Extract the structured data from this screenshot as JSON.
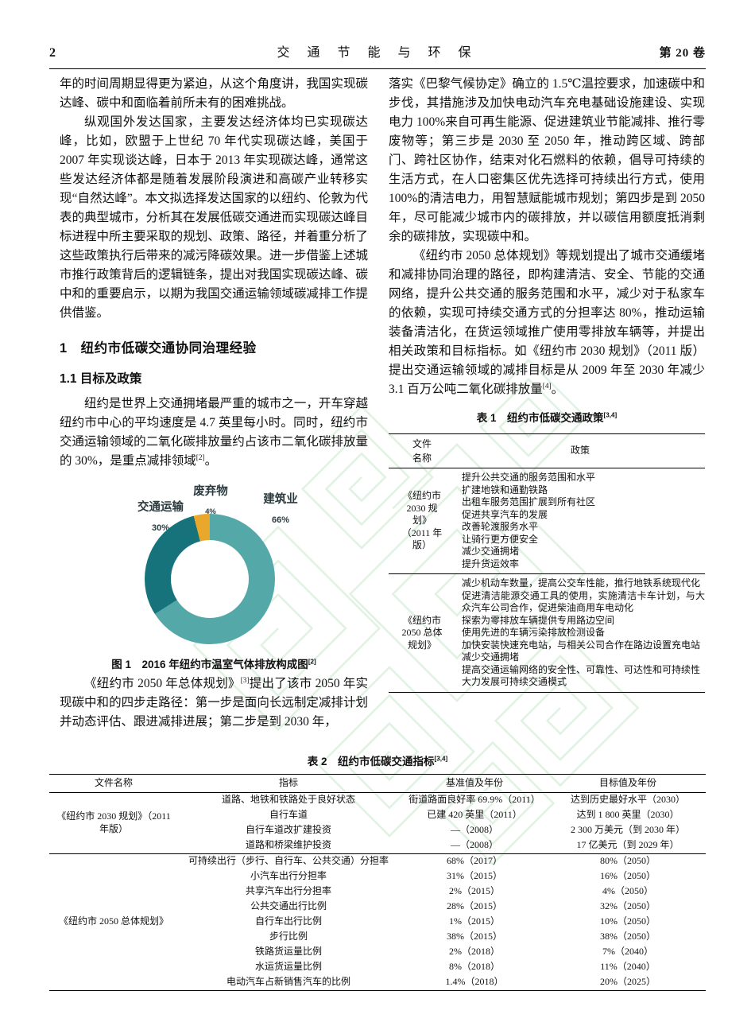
{
  "page": {
    "number": "2",
    "journal": "交 通 节 能 与 环 保",
    "volume": "第 20 卷"
  },
  "left_column": {
    "para_continuation": "年的时间周期显得更为紧迫，从这个角度讲，我国实现碳达峰、碳中和面临着前所未有的困难挑战。",
    "para_overview": "纵观国外发达国家，主要发达经济体均已实现碳达峰，比如，欧盟于上世纪 70 年代实现碳达峰，美国于 2007 年实现谈达峰，日本于 2013 年实现碳达峰，通常这些发达经济体都是随着发展阶段演进和高碳产业转移实现“自然达峰”。本文拟选择发达国家的以纽约、伦敦为代表的典型城市，分析其在发展低碳交通进而实现碳达峰目标进程中所主要采取的规划、政策、路径，并着重分析了这些政策执行后带来的减污降碳效果。进一步借鉴上述城市推行政策背后的逻辑链条，提出对我国实现碳达峰、碳中和的重要启示，以期为我国交通运输领域碳减排工作提供借鉴。",
    "heading_section": "1　纽约市低碳交通协同治理经验",
    "heading_subsection": "1.1 目标及政策",
    "para_newyork": [
      {
        "text": "纽约是世界上交通拥堵最严重的城市之一，开车穿越纽约市中心的平均速度是 4.7 英里每小时。同时，纽约市交通运输领域的二氧化碳排放量约占该市二氧化碳排放量的 30%，是重点减排领域"
      },
      {
        "sup": "[2]"
      },
      {
        "text": "。"
      }
    ],
    "para_plan2050": [
      {
        "text": "《纽约市 2050 年总体规划》"
      },
      {
        "sup": "[3]"
      },
      {
        "text": "提出了该市 2050 年实现碳中和的四步走路径：第一步是面向长远制定减排计划并动态评估、跟进减排进展；第二步是到 2030 年，"
      }
    ]
  },
  "right_column": {
    "para_steps": "落实《巴黎气候协定》确立的 1.5℃温控要求，加速碳中和步伐，其措施涉及加快电动汽车充电基础设施建设、实现电力 100%来自可再生能源、促进建筑业节能减排、推行零废物等；第三步是 2030 至 2050 年，推动跨区域、跨部门、跨社区协作，结束对化石燃料的依赖，倡导可持续的生活方式，在人口密集区优先选择可持续出行方式，使用 100%的清洁电力，用智慧赋能城市规划；第四步是到 2050 年，尽可能减少城市内的碳排放，并以碳信用额度抵消剩余的碳排放，实现碳中和。",
    "para_congestion": [
      {
        "text": "《纽约市 2050 总体规划》等规划提出了城市交通缓堵和减排协同治理的路径，即构建清洁、安全、节能的交通网络，提升公共交通的服务范围和水平，减少对于私家车的依赖，实现可持续交通方式的分担率达 80%，推动运输装备清洁化，在货运领域推广使用零排放车辆等，并提出相关政策和目标指标。如《纽约市 2030 规划》（2011 版）提出交通运输领域的减排目标是从 2009 年至 2030 年减少 3.1 百万公吨二氧化碳排放量"
      },
      {
        "sup": "[4]"
      },
      {
        "text": "。"
      }
    ]
  },
  "figure1": {
    "caption": [
      {
        "text": "图 1　2016 年纽约市温室气体排放构成图"
      },
      {
        "sup": "[2]"
      }
    ]
  },
  "chart_data": {
    "type": "pie",
    "subtype": "donut",
    "title": "2016 年纽约市温室气体排放构成图",
    "unit": "%",
    "start_angle_deg": 0,
    "direction": "clockwise",
    "label_color": "#2b3b40",
    "slices": [
      {
        "label": "建筑业",
        "value": 66,
        "value_label": "66%",
        "color": "#55a8a8"
      },
      {
        "label": "交通运输",
        "value": 30,
        "value_label": "30%",
        "color": "#16737b"
      },
      {
        "label": "废弃物",
        "value": 4,
        "value_label": "4%",
        "color": "#e9a82c"
      }
    ]
  },
  "table1": {
    "title": [
      {
        "text": "表 1　纽约市低碳交通政策"
      },
      {
        "sup": "[3,4]"
      }
    ],
    "col1_header": "文件名称",
    "col2_header": "政策",
    "groups": [
      {
        "doc": "《纽约市 2030 规划》（2011 年版）",
        "policies": [
          "提升公共交通的服务范围和水平",
          "扩建地铁和通勤铁路",
          "出租车服务范围扩展到所有社区",
          "促进共享汽车的发展",
          "改善轮渡服务水平",
          "让骑行更方便安全",
          "减少交通拥堵",
          "提升货运效率"
        ]
      },
      {
        "doc": "《纽约市 2050 总体规划》",
        "policies": [
          "减少机动车数量，提高公交车性能，推行地铁系统现代化",
          "促进清洁能源交通工具的使用，实施清洁卡车计划，与大众汽车公司合作，促进柴油商用车电动化",
          "探索为零排放车辆提供专用路边空间",
          "使用先进的车辆污染排放检测设备",
          "加快安装快速充电站，与相关公司合作在路边设置充电站",
          "减少交通拥堵",
          "提高交通运输网络的安全性、可靠性、可达性和可持续性",
          "大力发展可持续交通模式"
        ]
      }
    ]
  },
  "table2": {
    "title": [
      {
        "text": "表 2　纽约市低碳交通指标"
      },
      {
        "sup": "[3,4]"
      }
    ],
    "headers": [
      "文件名称",
      "指标",
      "基准值及年份",
      "目标值及年份"
    ],
    "groups": [
      {
        "doc": "《纽约市 2030 规划》（2011 年版）",
        "rows": [
          [
            "道路、地铁和铁路处于良好状态",
            "街道路面良好率 69.9%（2011）",
            "达到历史最好水平（2030）"
          ],
          [
            "自行车道",
            "已建 420 英里（2011）",
            "达到 1 800 英里（2030）"
          ],
          [
            "自行车道改扩建投资",
            "—（2008）",
            "2 300 万美元（到 2030 年）"
          ],
          [
            "道路和桥梁维护投资",
            "—（2008）",
            "17 亿美元（到 2029 年）"
          ]
        ]
      },
      {
        "doc": "《纽约市 2050 总体规划》",
        "rows": [
          [
            "可持续出行（步行、自行车、公共交通）分担率",
            "68%（2017）",
            "80%（2050）"
          ],
          [
            "小汽车出行分担率",
            "31%（2015）",
            "16%（2050）"
          ],
          [
            "共享汽车出行分担率",
            "2%（2015）",
            "4%（2050）"
          ],
          [
            "公共交通出行比例",
            "28%（2015）",
            "32%（2050）"
          ],
          [
            "自行车出行比例",
            "1%（2015）",
            "10%（2050）"
          ],
          [
            "步行比例",
            "38%（2015）",
            "38%（2050）"
          ],
          [
            "铁路货运量比例",
            "2%（2018）",
            "7%（2040）"
          ],
          [
            "水运货运量比例",
            "8%（2018）",
            "11%（2040）"
          ],
          [
            "电动汽车占新销售汽车的比例",
            "1.4%（2018）",
            "20%（2025）"
          ]
        ]
      }
    ]
  }
}
